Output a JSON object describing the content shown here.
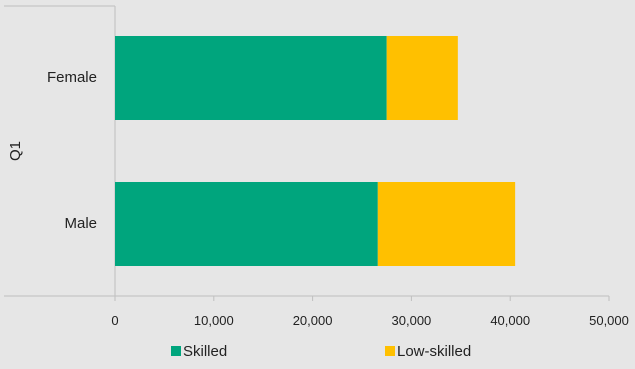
{
  "chart_data": {
    "type": "bar",
    "orientation": "horizontal",
    "stacked": true,
    "group_label": "Q1",
    "categories": [
      "Female",
      "Male"
    ],
    "series": [
      {
        "name": "Skilled",
        "values": [
          27500,
          26600
        ],
        "color": "#00a57d"
      },
      {
        "name": "Low-skilled",
        "values": [
          7200,
          13900
        ],
        "color": "#ffc000"
      }
    ],
    "xlim": [
      0,
      50000
    ],
    "xticks": [
      0,
      10000,
      20000,
      30000,
      40000,
      50000
    ],
    "xtick_labels": [
      "0",
      "10,000",
      "20,000",
      "30,000",
      "40,000",
      "50,000"
    ],
    "grid": false,
    "legend_position": "bottom",
    "axis_color": "#bfbfbf",
    "background": "#e6e6e6"
  }
}
